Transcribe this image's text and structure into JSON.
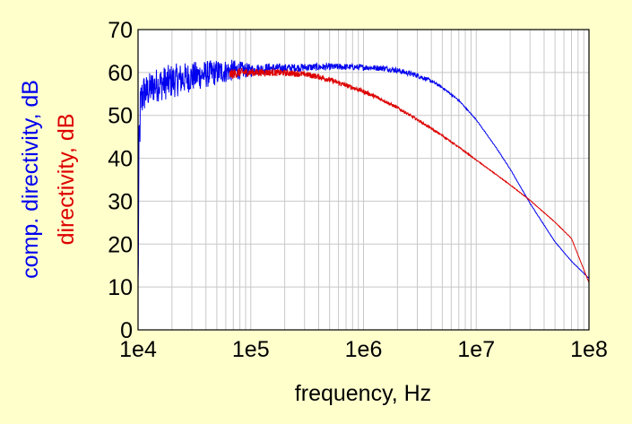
{
  "chart_data": {
    "type": "line",
    "title": "",
    "xlabel": "frequency, Hz",
    "ylabels": [
      {
        "text": "comp. directivity, dB",
        "color": "#0000ee"
      },
      {
        "text": "directivity, dB",
        "color": "#dd0000"
      }
    ],
    "xscale": "log",
    "xlim": [
      10000,
      100000000
    ],
    "ylim": [
      0,
      70
    ],
    "x_ticks": [
      "1e4",
      "1e5",
      "1e6",
      "1e7",
      "1e8"
    ],
    "y_ticks": [
      "0",
      "10",
      "20",
      "30",
      "40",
      "50",
      "60",
      "70"
    ],
    "grid": true,
    "legend": "none",
    "background": "#ffffcc",
    "plot_background": "#ffffff",
    "grid_color": "#c8c8c8",
    "series": [
      {
        "color": "#0000ee",
        "noise": [
          [
            10000,
            9
          ],
          [
            10500,
            6
          ],
          [
            11000,
            5
          ],
          [
            12000,
            4
          ],
          [
            14000,
            4
          ],
          [
            17000,
            4
          ],
          [
            20000,
            4
          ],
          [
            30000,
            3.5
          ],
          [
            50000,
            3
          ],
          [
            70000,
            2.5
          ],
          [
            100000,
            1.5
          ],
          [
            200000,
            1.0
          ],
          [
            500000,
            0.8
          ],
          [
            1000000,
            0.7
          ],
          [
            3000000,
            0.6
          ],
          [
            5000000,
            0.3
          ],
          [
            10000000,
            0.1
          ],
          [
            100000000,
            0.05
          ]
        ],
        "x": [
          10000,
          10200,
          10500,
          11000,
          12000,
          14000,
          17000,
          20000,
          30000,
          50000,
          70000,
          100000,
          150000,
          200000,
          300000,
          500000,
          700000,
          1000000,
          1500000,
          2000000,
          3000000,
          4000000,
          5000000,
          7000000,
          10000000,
          15000000,
          20000000,
          30000000,
          50000000,
          70000000,
          100000000
        ],
        "y": [
          8,
          40,
          52,
          55,
          55.5,
          57,
          57.5,
          58,
          59,
          60,
          60.5,
          60.5,
          61,
          61,
          61.2,
          61.3,
          61.3,
          61.2,
          61,
          60.5,
          59.3,
          58,
          56.5,
          53.5,
          49,
          42.5,
          37.5,
          29.5,
          20.5,
          16,
          12
        ]
      },
      {
        "color": "#dd0000",
        "noise": [
          [
            10000,
            0
          ],
          [
            60000,
            0
          ],
          [
            65000,
            1.2
          ],
          [
            100000,
            0.9
          ],
          [
            300000,
            0.7
          ],
          [
            1000000,
            0.5
          ],
          [
            3000000,
            0.3
          ],
          [
            10000000,
            0.1
          ],
          [
            100000000,
            0.05
          ]
        ],
        "x": [
          65000,
          80000,
          100000,
          150000,
          200000,
          300000,
          400000,
          500000,
          700000,
          1000000,
          1500000,
          2000000,
          3000000,
          5000000,
          7000000,
          10000000,
          15000000,
          20000000,
          30000000,
          50000000,
          70000000,
          100000000
        ],
        "y": [
          59.5,
          60,
          60,
          60,
          59.9,
          59.6,
          59,
          58.3,
          57,
          55.6,
          53.5,
          51.8,
          49,
          45.3,
          42.6,
          39.6,
          36.2,
          33.8,
          30.2,
          25.1,
          21.3,
          11
        ]
      }
    ]
  }
}
